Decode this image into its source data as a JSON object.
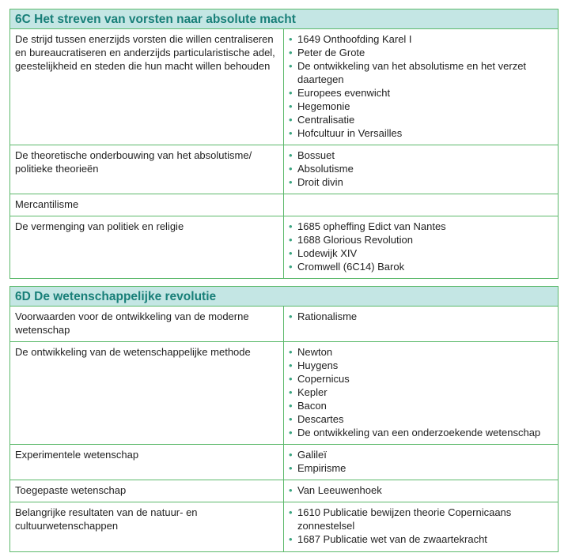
{
  "sections": [
    {
      "title": "6C Het streven van vorsten naar absolute macht",
      "rows": [
        {
          "topic": "De strijd tussen enerzijds vorsten die willen centraliseren en bureaucratiseren en anderzijds particularistische adel, geestelijkheid en steden die hun macht willen behouden",
          "items": [
            "1649 Onthoofding Karel I",
            "Peter de Grote",
            "De ontwikkeling van het absolutisme en het verzet daartegen",
            "Europees evenwicht",
            "Hegemonie",
            "Centralisatie",
            "Hofcultuur in Versailles"
          ]
        },
        {
          "topic": "De theoretische onderbouwing van het absolutisme/ politieke theorieën",
          "items": [
            "Bossuet",
            "Absolutisme",
            "Droit divin"
          ]
        },
        {
          "topic": "Mercantilisme",
          "items": []
        },
        {
          "topic": "De vermenging van politiek en religie",
          "items": [
            "1685 opheffing Edict van Nantes",
            "1688 Glorious Revolution",
            "Lodewijk XIV",
            "Cromwell (6C14) Barok"
          ]
        }
      ]
    },
    {
      "title": "6D De wetenschappelijke revolutie",
      "rows": [
        {
          "topic": "Voorwaarden voor de ontwikkeling van de moderne wetenschap",
          "items": [
            "Rationalisme"
          ]
        },
        {
          "topic": "De ontwikkeling van de wetenschappelijke methode",
          "items": [
            "Newton",
            "Huygens",
            "Copernicus",
            "Kepler",
            "Bacon",
            "Descartes",
            "De ontwikkeling van een onderzoekende wetenschap"
          ]
        },
        {
          "topic": "Experimentele wetenschap",
          "items": [
            "Galileï",
            "Empirisme"
          ]
        },
        {
          "topic": "Toegepaste wetenschap",
          "items": [
            "Van Leeuwenhoek"
          ]
        },
        {
          "topic": "Belangrijke resultaten van de natuur- en cultuurwetenschappen",
          "items": [
            "1610 Publicatie bewijzen theorie Copernicaans zonnestelsel",
            "1687 Publicatie wet van de zwaartekracht"
          ]
        }
      ]
    }
  ],
  "colors": {
    "header_bg": "#c4e6e4",
    "header_text": "#187f78",
    "border": "#5cb96b"
  }
}
